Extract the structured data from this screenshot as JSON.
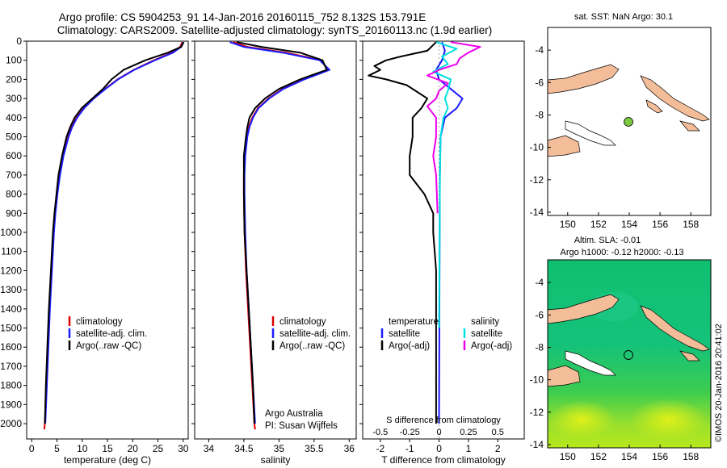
{
  "figure": {
    "title_line1": "Argo profile: CS 5904253_91 14-Jan-2016 20160115_752 8.132S 153.791E",
    "title_line2": "Climatology: CARS2009. Satellite-adjusted climatology: synTS_20160113.nc (1.9d earlier)",
    "credit": "©IMOS 20-Jan-2016 20:41:02",
    "colors": {
      "climatology": "#dd0000",
      "satellite": "#1a1aff",
      "argo": "#000000",
      "satellite_salinity": "#00e0e0",
      "argo_salinity": "#ee00ee",
      "land": "#f2bd98",
      "float_marker": "#7cc840"
    }
  },
  "chart_data": [
    {
      "type": "line",
      "panel": "temperature",
      "xlabel": "temperature (deg C)",
      "xlim": [
        -1,
        31
      ],
      "ylim": [
        2080,
        0
      ],
      "xticks": [
        0,
        5,
        10,
        15,
        20,
        25,
        30
      ],
      "yticks": [
        0,
        100,
        200,
        300,
        400,
        500,
        600,
        700,
        800,
        900,
        1000,
        1100,
        1200,
        1300,
        1400,
        1500,
        1600,
        1700,
        1800,
        1900,
        2000
      ],
      "legend": [
        "climatology",
        "satellite-adj. clim.",
        "Argo(..raw -QC)"
      ],
      "series": [
        {
          "name": "climatology",
          "color": "#dd0000",
          "depth": [
            5,
            30,
            60,
            100,
            150,
            200,
            250,
            300,
            350,
            400,
            450,
            500,
            600,
            700,
            800,
            900,
            1000,
            1200,
            1400,
            1600,
            1800,
            2000,
            2030
          ],
          "values": [
            29.8,
            29.4,
            27.8,
            24.2,
            20.2,
            17.0,
            14.5,
            12.2,
            10.3,
            8.9,
            7.9,
            7.2,
            6.2,
            5.5,
            5.0,
            4.6,
            4.3,
            3.9,
            3.5,
            3.2,
            2.9,
            2.6,
            2.5
          ]
        },
        {
          "name": "satellite-adj. clim.",
          "color": "#1a1aff",
          "depth": [
            5,
            30,
            60,
            100,
            150,
            200,
            250,
            300,
            350,
            400,
            450,
            500,
            600,
            700,
            800,
            900,
            1000,
            1200,
            1400,
            1600,
            1800,
            2000
          ],
          "values": [
            30.0,
            29.6,
            28.0,
            24.4,
            20.3,
            17.1,
            14.6,
            12.3,
            10.4,
            9.0,
            8.0,
            7.3,
            6.3,
            5.6,
            5.1,
            4.7,
            4.4,
            4.0,
            3.6,
            3.3,
            3.0,
            2.7
          ]
        },
        {
          "name": "Argo(..raw -QC)",
          "color": "#000000",
          "depth": [
            5,
            30,
            60,
            100,
            150,
            200,
            250,
            300,
            350,
            400,
            450,
            500,
            600,
            700,
            800,
            900,
            1000,
            1200,
            1400,
            1600,
            1800,
            2000
          ],
          "values": [
            30.1,
            29.6,
            27.0,
            22.5,
            18.2,
            15.8,
            14.1,
            12.0,
            9.9,
            8.5,
            7.6,
            6.9,
            6.0,
            5.3,
            4.9,
            4.5,
            4.2,
            3.8,
            3.4,
            3.1,
            2.8,
            2.6
          ]
        }
      ]
    },
    {
      "type": "line",
      "panel": "salinity",
      "xlabel": "salinity",
      "xlim": [
        33.8,
        36.1
      ],
      "ylim": [
        2080,
        0
      ],
      "xticks": [
        34,
        34.5,
        35,
        35.5,
        36
      ],
      "legend": [
        "climatology",
        "satellite-adj. clim.",
        "Argo(..raw -QC)"
      ],
      "annotations": [
        "Argo Australia",
        "PI: Susan Wijffels"
      ],
      "series": [
        {
          "name": "climatology",
          "color": "#dd0000",
          "depth": [
            5,
            30,
            60,
            100,
            150,
            200,
            250,
            300,
            350,
            400,
            450,
            500,
            600,
            700,
            800,
            1000,
            1200,
            1400,
            1600,
            1800,
            2000,
            2030
          ],
          "values": [
            34.35,
            34.55,
            35.1,
            35.6,
            35.7,
            35.35,
            35.05,
            34.85,
            34.7,
            34.62,
            34.57,
            34.54,
            34.51,
            34.5,
            34.5,
            34.51,
            34.53,
            34.56,
            34.59,
            34.62,
            34.65,
            34.66
          ]
        },
        {
          "name": "satellite-adj. clim.",
          "color": "#1a1aff",
          "depth": [
            5,
            30,
            60,
            100,
            150,
            200,
            250,
            300,
            350,
            400,
            450,
            500,
            600,
            700,
            800,
            1000,
            1200,
            1400,
            1600,
            1800,
            2000
          ],
          "values": [
            34.3,
            34.5,
            35.05,
            35.58,
            35.72,
            35.36,
            35.06,
            34.86,
            34.71,
            34.63,
            34.58,
            34.55,
            34.52,
            34.51,
            34.51,
            34.52,
            34.54,
            34.57,
            34.6,
            34.63,
            34.66
          ]
        },
        {
          "name": "Argo(..raw -QC)",
          "color": "#000000",
          "depth": [
            5,
            30,
            60,
            100,
            150,
            200,
            250,
            300,
            350,
            400,
            450,
            500,
            600,
            700,
            800,
            1000,
            1200,
            1400,
            1600,
            1800,
            2000
          ],
          "values": [
            34.4,
            34.75,
            35.3,
            35.62,
            35.68,
            35.3,
            35.0,
            34.8,
            34.66,
            34.58,
            34.55,
            34.53,
            34.5,
            34.5,
            34.5,
            34.51,
            34.54,
            34.57,
            34.6,
            34.63,
            34.65
          ]
        }
      ]
    },
    {
      "type": "line",
      "panel": "difference",
      "xlabel_top": "S difference from climatology",
      "xlabel": "T difference from climatology",
      "xlim": [
        -2.6,
        2.9
      ],
      "xticks_T": [
        -2,
        -1,
        0,
        1,
        2
      ],
      "xticks_S_labels": [
        "-0.5",
        "-0.25",
        "0",
        "0.25",
        "0.5"
      ],
      "xticks_S_positions_T_units": [
        -2,
        -1,
        0,
        1,
        2
      ],
      "legend": {
        "temperature_header": "temperature",
        "salinity_header": "salinity",
        "entries": [
          "satellite",
          "Argo(-adj)",
          "satellite",
          "Argo(-adj)"
        ]
      },
      "series": [
        {
          "name": "satellite (temperature)",
          "color": "#1a1aff",
          "depth": [
            5,
            50,
            100,
            150,
            200,
            250,
            300,
            350,
            400,
            500,
            700,
            1000,
            1500,
            2000
          ],
          "values": [
            0.1,
            0.2,
            0.1,
            -0.1,
            0.0,
            0.4,
            0.8,
            0.6,
            0.2,
            0.05,
            0.03,
            0.02,
            0.01,
            0.0
          ]
        },
        {
          "name": "Argo(-adj) (temperature)",
          "color": "#000000",
          "depth": [
            5,
            50,
            80,
            100,
            130,
            150,
            180,
            200,
            230,
            260,
            300,
            350,
            400,
            500,
            600,
            700,
            800,
            900,
            1000,
            1200,
            1400,
            1600,
            1800,
            2000
          ],
          "values": [
            -0.1,
            -0.4,
            -1.3,
            -1.8,
            -2.2,
            -2.0,
            -2.4,
            -1.8,
            -1.1,
            -0.8,
            -0.4,
            -0.6,
            -0.9,
            -0.9,
            -1.0,
            -1.0,
            -0.5,
            -0.2,
            -0.2,
            -0.1,
            -0.1,
            -0.1,
            -0.1,
            -0.1
          ]
        },
        {
          "name": "satellite (salinity)",
          "color": "#00e0e0",
          "depth": [
            5,
            40,
            80,
            120,
            160,
            200,
            260,
            300,
            350,
            400,
            500,
            700,
            1000,
            1500
          ],
          "values": [
            -0.1,
            0.6,
            0.1,
            0.3,
            -0.2,
            0.4,
            0.3,
            0.2,
            0.3,
            0.15,
            0.05,
            0.03,
            0.02,
            0.0
          ]
        },
        {
          "name": "Argo(-adj) (salinity)",
          "color": "#ee00ee",
          "depth": [
            5,
            30,
            60,
            90,
            120,
            150,
            180,
            220,
            260,
            300,
            340,
            400,
            500,
            600,
            700,
            900
          ],
          "values": [
            0.4,
            1.4,
            1.0,
            0.7,
            0.6,
            0.0,
            -0.4,
            0.3,
            0.0,
            -0.1,
            -0.4,
            -0.1,
            -0.1,
            -0.2,
            -0.1,
            -0.05
          ]
        }
      ]
    }
  ],
  "maps": {
    "top": {
      "title": "sat. SST: NaN Argo: 30.1",
      "lon_ticks": [
        150,
        152,
        154,
        156,
        158
      ],
      "lat_ticks": [
        -4,
        -6,
        -8,
        -10,
        -12,
        -14
      ],
      "lon_range": [
        148.7,
        159.3
      ],
      "lat_range": [
        -14.2,
        -2.6
      ],
      "float_lon": 153.79,
      "float_lat": -8.13
    },
    "bottom": {
      "title_line1": "Altim. SLA: -0.01",
      "title_line2": "Argo h1000: -0.12 h2000: -0.13",
      "lon_ticks": [
        150,
        152,
        154,
        156,
        158
      ],
      "lat_ticks": [
        -4,
        -6,
        -8,
        -10,
        -12,
        -14
      ],
      "lon_range": [
        148.7,
        159.3
      ],
      "lat_range": [
        -14.2,
        -2.6
      ],
      "float_lon": 153.79,
      "float_lat": -8.13
    }
  }
}
